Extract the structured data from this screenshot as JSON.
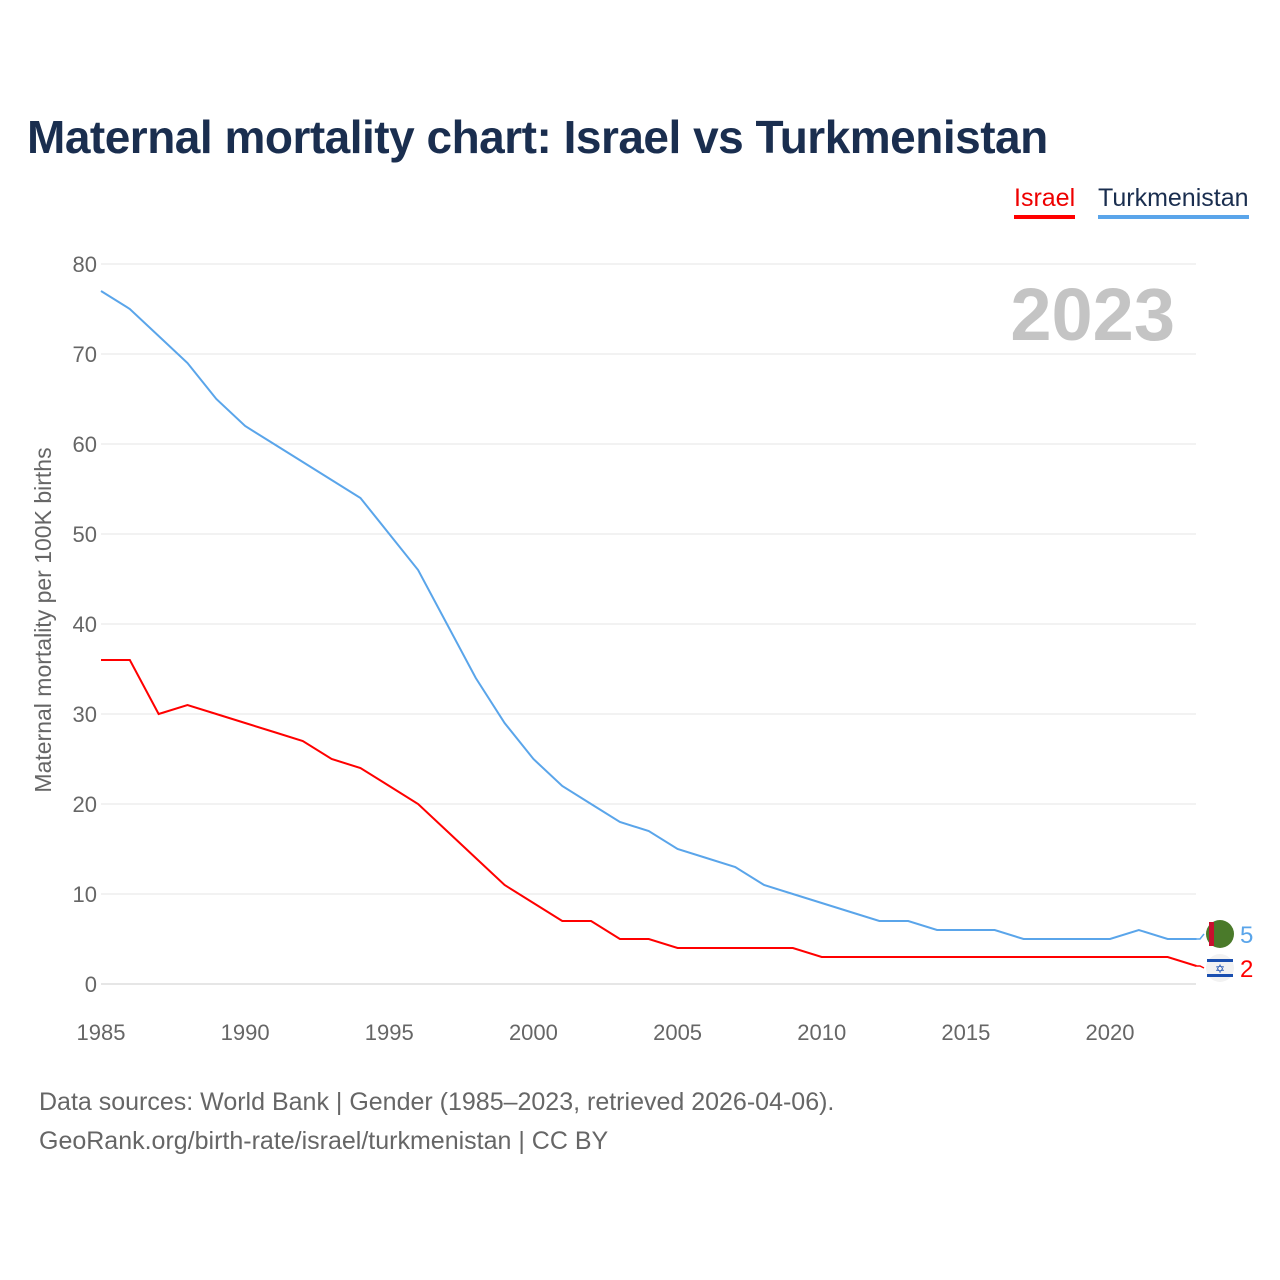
{
  "chart_data": {
    "type": "line",
    "title": "Maternal mortality chart: Israel vs Turkmenistan",
    "ylabel": "Maternal mortality per 100K births",
    "xlabel": "",
    "year_label": "2023",
    "xlim": [
      1985,
      2023
    ],
    "ylim": [
      0,
      80
    ],
    "xticks": [
      1985,
      1990,
      1995,
      2000,
      2005,
      2010,
      2015,
      2020
    ],
    "yticks": [
      0,
      10,
      20,
      30,
      40,
      50,
      60,
      70,
      80
    ],
    "grid": true,
    "legend_position": "top-right",
    "x": [
      1985,
      1986,
      1987,
      1988,
      1989,
      1990,
      1991,
      1992,
      1993,
      1994,
      1995,
      1996,
      1997,
      1998,
      1999,
      2000,
      2001,
      2002,
      2003,
      2004,
      2005,
      2006,
      2007,
      2008,
      2009,
      2010,
      2011,
      2012,
      2013,
      2014,
      2015,
      2016,
      2017,
      2018,
      2019,
      2020,
      2021,
      2022,
      2023
    ],
    "series": [
      {
        "name": "Israel",
        "color": "#ff0000",
        "end_label": "2",
        "values": [
          36,
          36,
          30,
          31,
          30,
          29,
          28,
          27,
          25,
          24,
          22,
          20,
          17,
          14,
          11,
          9,
          7,
          7,
          5,
          5,
          4,
          4,
          4,
          4,
          4,
          3,
          3,
          3,
          3,
          3,
          3,
          3,
          3,
          3,
          3,
          3,
          3,
          3,
          2
        ]
      },
      {
        "name": "Turkmenistan",
        "color": "#5aa5ea",
        "end_label": "5",
        "values": [
          77,
          75,
          72,
          69,
          65,
          62,
          60,
          58,
          56,
          54,
          50,
          46,
          40,
          34,
          29,
          25,
          22,
          20,
          18,
          17,
          15,
          14,
          13,
          11,
          10,
          9,
          8,
          7,
          7,
          6,
          6,
          6,
          5,
          5,
          5,
          5,
          6,
          5,
          5
        ]
      }
    ]
  },
  "footer": {
    "line1": "Data sources: World Bank | Gender (1985–2023, retrieved 2026-04-06).",
    "line2": "GeoRank.org/birth-rate/israel/turkmenistan | CC BY"
  }
}
